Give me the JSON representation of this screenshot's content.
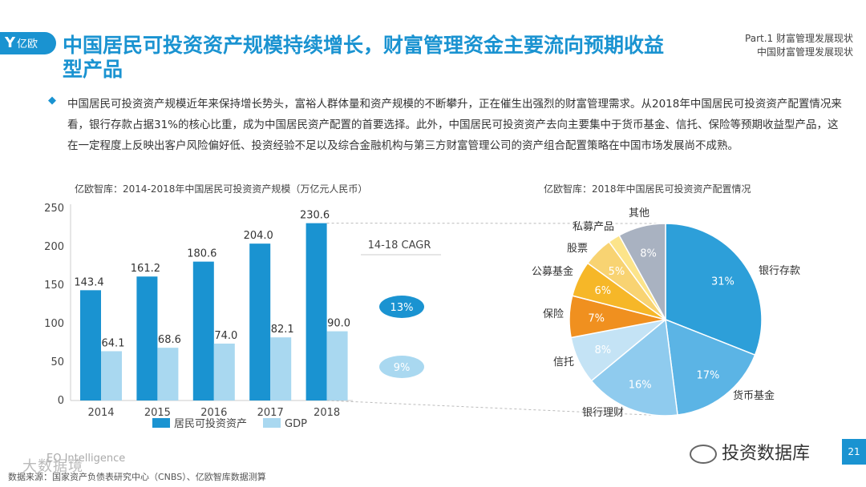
{
  "header": {
    "logo_text": "亿欧",
    "title": "中国居民可投资资产规模持续增长，财富管理资金主要流向预期收益型产品",
    "part_line1": "Part.1 财富管理发展现状",
    "part_line2": "中国财富管理发展现状"
  },
  "body": {
    "paragraph": "中国居民可投资资产规模近年来保持增长势头，富裕人群体量和资产规模的不断攀升，正在催生出强烈的财富管理需求。从2018年中国居民可投资资产配置情况来看，银行存款占据31%的核心比重，成为中国居民资产配置的首要选择。此外，中国居民可投资资产去向主要集中于货币基金、信托、保险等预期收益型产品，这在一定程度上反映出客户风险偏好低、投资经验不足以及综合金融机构与第三方财富管理公司的资产组合配置策略在中国市场发展尚不成熟。"
  },
  "chart_data": [
    {
      "type": "bar",
      "title": "亿欧智库：2014-2018年中国居民可投资资产规模（万亿元人民币）",
      "categories": [
        "2014",
        "2015",
        "2016",
        "2017",
        "2018"
      ],
      "series": [
        {
          "name": "居民可投资资产",
          "values": [
            143.4,
            161.2,
            180.6,
            204.0,
            230.6
          ],
          "color": "#1a93d1"
        },
        {
          "name": "GDP",
          "values": [
            64.1,
            68.6,
            74.0,
            82.1,
            90.0
          ],
          "color": "#a9d8f0"
        }
      ],
      "value_labels": [
        [
          "143.4",
          "161.2",
          "180.6",
          "204.0",
          "230.6"
        ],
        [
          "64.1",
          "68.6",
          "74.0",
          "82.1",
          "90.0"
        ]
      ],
      "ylim": [
        0,
        250
      ],
      "yticks": [
        0,
        50,
        100,
        150,
        200,
        250
      ],
      "ytick_labels": [
        "0",
        "50",
        "100",
        "150",
        "200",
        "250"
      ],
      "legend_position": "bottom",
      "annotations": {
        "cagr_label": "14-18 CAGR",
        "cagr_values": [
          {
            "series": "居民可投资资产",
            "label": "13%",
            "color": "#1a93d1"
          },
          {
            "series": "GDP",
            "label": "9%",
            "color": "#a9d8f0"
          }
        ]
      }
    },
    {
      "type": "pie",
      "title": "亿欧智库：2018年中国居民可投资资产配置情况",
      "slices": [
        {
          "label": "银行存款",
          "value": 31,
          "text": "31%",
          "color": "#2d9fd9"
        },
        {
          "label": "货币基金",
          "value": 17,
          "text": "17%",
          "color": "#5bb4e5"
        },
        {
          "label": "银行理财",
          "value": 16,
          "text": "16%",
          "color": "#8fcbee"
        },
        {
          "label": "信托",
          "value": 8,
          "text": "8%",
          "color": "#c4e3f5"
        },
        {
          "label": "保险",
          "value": 7,
          "text": "7%",
          "color": "#f0901f"
        },
        {
          "label": "公募基金",
          "value": 6,
          "text": "6%",
          "color": "#f6b728"
        },
        {
          "label": "股票",
          "value": 5,
          "text": "5%",
          "color": "#f8d372"
        },
        {
          "label": "私募产品",
          "value": 2,
          "text": "",
          "color": "#fce48a"
        },
        {
          "label": "其他",
          "value": 8,
          "text": "8%",
          "color": "#a9b2c1"
        }
      ]
    }
  ],
  "footer": {
    "source": "数据来源：国家资产负债表研究中心（CNBS）、亿欧智库数据测算",
    "eo_text": "EO Intelligence",
    "watermark": "大数据境",
    "wechat": "投资数据库",
    "page_number": "21"
  }
}
